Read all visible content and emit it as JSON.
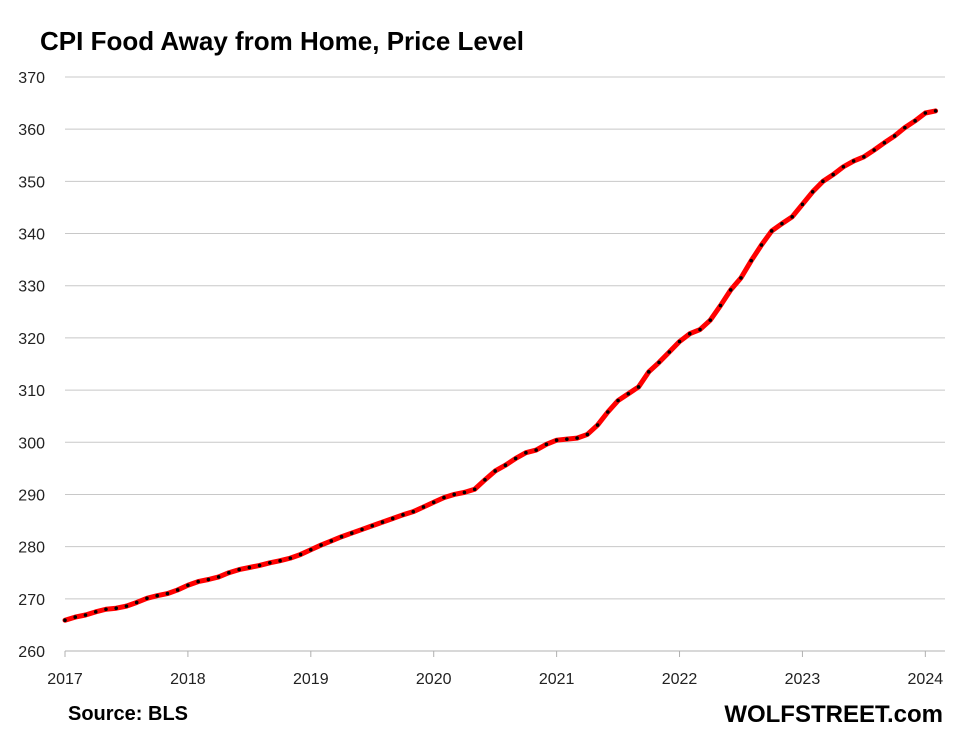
{
  "chart_data": {
    "type": "line",
    "title": "CPI Food Away from Home, Price Level",
    "source": "Source: BLS",
    "brand": "WOLFSTREET.com",
    "xlabel": "",
    "ylabel": "",
    "ylim": [
      260,
      370
    ],
    "y_ticks": [
      "260",
      "270",
      "280",
      "290",
      "300",
      "310",
      "320",
      "330",
      "340",
      "350",
      "360",
      "370"
    ],
    "x_ticks": [
      "2017",
      "2018",
      "2019",
      "2020",
      "2021",
      "2022",
      "2023",
      "2024"
    ],
    "grid": true,
    "series": [
      {
        "name": "CPI Food Away from Home",
        "color": "#ff0000",
        "marker_color": "#000000",
        "start": "2017-01",
        "values": [
          265.9,
          266.5,
          266.9,
          267.5,
          268.0,
          268.2,
          268.6,
          269.3,
          270.1,
          270.6,
          271.0,
          271.7,
          272.6,
          273.3,
          273.7,
          274.2,
          275.0,
          275.6,
          276.0,
          276.4,
          276.9,
          277.3,
          277.8,
          278.5,
          279.4,
          280.3,
          281.1,
          281.9,
          282.6,
          283.3,
          284.0,
          284.7,
          285.4,
          286.1,
          286.7,
          287.6,
          288.5,
          289.4,
          290.0,
          290.4,
          291.0,
          292.8,
          294.5,
          295.6,
          296.9,
          298.0,
          298.5,
          299.6,
          300.4,
          300.6,
          300.8,
          301.5,
          303.3,
          305.8,
          308.0,
          309.3,
          310.6,
          313.5,
          315.3,
          317.3,
          319.3,
          320.8,
          321.6,
          323.4,
          326.2,
          329.2,
          331.5,
          334.8,
          337.8,
          340.5,
          341.9,
          343.2,
          345.6,
          348.0,
          350.0,
          351.3,
          352.8,
          353.9,
          354.7,
          356.0,
          357.4,
          358.7,
          360.3,
          361.6,
          363.1,
          363.5
        ]
      }
    ]
  }
}
